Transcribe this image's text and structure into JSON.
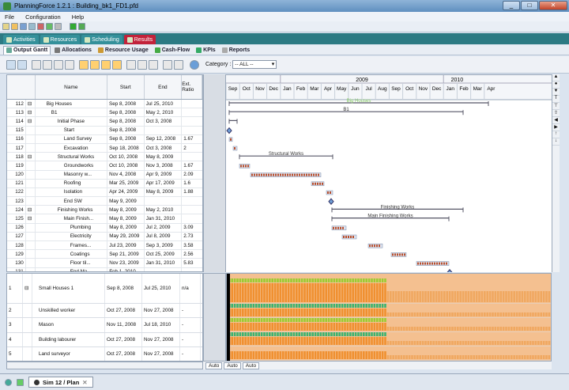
{
  "window": {
    "title": "PlanningForce 1.2.1 : Building_bk1_FD1.pfd",
    "min": "_",
    "max": "□",
    "close": "✕"
  },
  "menu": [
    "File",
    "Configuration",
    "Help"
  ],
  "view_tabs": [
    "Activities",
    "Resources",
    "Scheduling",
    "Results"
  ],
  "sub_tabs": [
    "Output Gantt",
    "Allocations",
    "Resource Usage",
    "Cash-Flow",
    "KPIs",
    "Reports"
  ],
  "category": {
    "label": "Category :",
    "value": "-- ALL --"
  },
  "grid": {
    "headers": {
      "name": "Name",
      "start": "Start",
      "end": "End",
      "ext": "Ext. Ratio"
    },
    "rows": [
      {
        "id": "112",
        "exp": "⊟",
        "name": "Big Houses",
        "start": "Sep 8, 2008",
        "end": "Jul 25, 2010",
        "ext": "",
        "ind": 14
      },
      {
        "id": "113",
        "exp": "⊟",
        "name": "B1",
        "start": "Sep 8, 2008",
        "end": "May 2, 2010",
        "ext": "",
        "ind": 20
      },
      {
        "id": "114",
        "exp": "⊟",
        "name": "Initial Phase",
        "start": "Sep 8, 2008",
        "end": "Oct 3, 2008",
        "ext": "",
        "ind": 28
      },
      {
        "id": "115",
        "exp": "",
        "name": "Start",
        "start": "Sep 8, 2008",
        "end": "",
        "ext": "",
        "ind": 36
      },
      {
        "id": "116",
        "exp": "",
        "name": "Land Survey",
        "start": "Sep 8, 2008",
        "end": "Sep 12, 2008",
        "ext": "1.67",
        "ind": 36
      },
      {
        "id": "117",
        "exp": "",
        "name": "Excavation",
        "start": "Sep 18, 2008",
        "end": "Oct 3, 2008",
        "ext": "2",
        "ind": 36
      },
      {
        "id": "118",
        "exp": "⊟",
        "name": "Structural Works",
        "start": "Oct 10, 2008",
        "end": "May 8, 2009",
        "ext": "",
        "ind": 28
      },
      {
        "id": "119",
        "exp": "",
        "name": "Groundworks",
        "start": "Oct 10, 2008",
        "end": "Nov 3, 2008",
        "ext": "1.67",
        "ind": 36
      },
      {
        "id": "120",
        "exp": "",
        "name": "Masonry w...",
        "start": "Nov 4, 2008",
        "end": "Apr 9, 2009",
        "ext": "2.09",
        "ind": 36
      },
      {
        "id": "121",
        "exp": "",
        "name": "Roofing",
        "start": "Mar 25, 2009",
        "end": "Apr 17, 2009",
        "ext": "1.6",
        "ind": 36
      },
      {
        "id": "122",
        "exp": "",
        "name": "Isolation",
        "start": "Apr 24, 2009",
        "end": "May 8, 2009",
        "ext": "1.88",
        "ind": 36
      },
      {
        "id": "123",
        "exp": "",
        "name": "End SW",
        "start": "May 9, 2009",
        "end": "",
        "ext": "",
        "ind": 36
      },
      {
        "id": "124",
        "exp": "⊟",
        "name": "Finishing Works",
        "start": "May 8, 2009",
        "end": "May 2, 2010",
        "ext": "",
        "ind": 28
      },
      {
        "id": "125",
        "exp": "⊟",
        "name": "Main Finish...",
        "start": "May 8, 2009",
        "end": "Jan 31, 2010",
        "ext": "",
        "ind": 36
      },
      {
        "id": "126",
        "exp": "",
        "name": "Plumbing",
        "start": "May 8, 2009",
        "end": "Jul 2, 2009",
        "ext": "3.09",
        "ind": 44
      },
      {
        "id": "127",
        "exp": "",
        "name": "Electricity",
        "start": "May 29, 2009",
        "end": "Jul 8, 2009",
        "ext": "2.73",
        "ind": 44
      },
      {
        "id": "128",
        "exp": "",
        "name": "Frames...",
        "start": "Jul 23, 2009",
        "end": "Sep 3, 2009",
        "ext": "3.58",
        "ind": 44
      },
      {
        "id": "129",
        "exp": "",
        "name": "Coatings",
        "start": "Sep 21, 2009",
        "end": "Oct 25, 2009",
        "ext": "2.56",
        "ind": 44
      },
      {
        "id": "130",
        "exp": "",
        "name": "Floor til...",
        "start": "Nov 23, 2009",
        "end": "Jan 31, 2010",
        "ext": "5.83",
        "ind": 44
      },
      {
        "id": "131",
        "exp": "",
        "name": "End Ma...",
        "start": "Feb 1, 2010",
        "end": "",
        "ext": "",
        "ind": 44
      }
    ]
  },
  "timeline": {
    "years": [
      "2009",
      "2010"
    ],
    "months": [
      "Sep",
      "Oct",
      "Nov",
      "Dec",
      "Jan",
      "Feb",
      "Mar",
      "Apr",
      "May",
      "Jun",
      "Jul",
      "Aug",
      "Sep",
      "Oct",
      "Nov",
      "Dec",
      "Jan",
      "Feb",
      "Mar",
      "Apr"
    ]
  },
  "gantt_labels": {
    "big": "Big Houses",
    "b1": "B1",
    "sw": "Structural Works",
    "fw": "Finishing Works",
    "mfw": "Main Finishing Works"
  },
  "resources": [
    {
      "id": "1",
      "exp": "⊟",
      "name": "Small Houses 1",
      "start": "Sep 8, 2008",
      "end": "Jul 25, 2010",
      "ext": "n/a"
    },
    {
      "id": "2",
      "exp": "",
      "name": "Unskilled worker",
      "start": "Oct 27, 2008",
      "end": "Nov 27, 2008",
      "ext": "-"
    },
    {
      "id": "3",
      "exp": "",
      "name": "Mason",
      "start": "Nov 11, 2008",
      "end": "Jul 18, 2010",
      "ext": "-"
    },
    {
      "id": "4",
      "exp": "",
      "name": "Building labourer",
      "start": "Oct 27, 2008",
      "end": "Nov 27, 2008",
      "ext": "-"
    },
    {
      "id": "5",
      "exp": "",
      "name": "Land surveyor",
      "start": "Oct 27, 2008",
      "end": "Nov 27, 2008",
      "ext": "-"
    }
  ],
  "usage": {
    "max_label": "40.5"
  },
  "auto_buttons": [
    "Auto",
    "Auto",
    "Auto"
  ],
  "bottom_tab": "Sim 12 / Plan"
}
